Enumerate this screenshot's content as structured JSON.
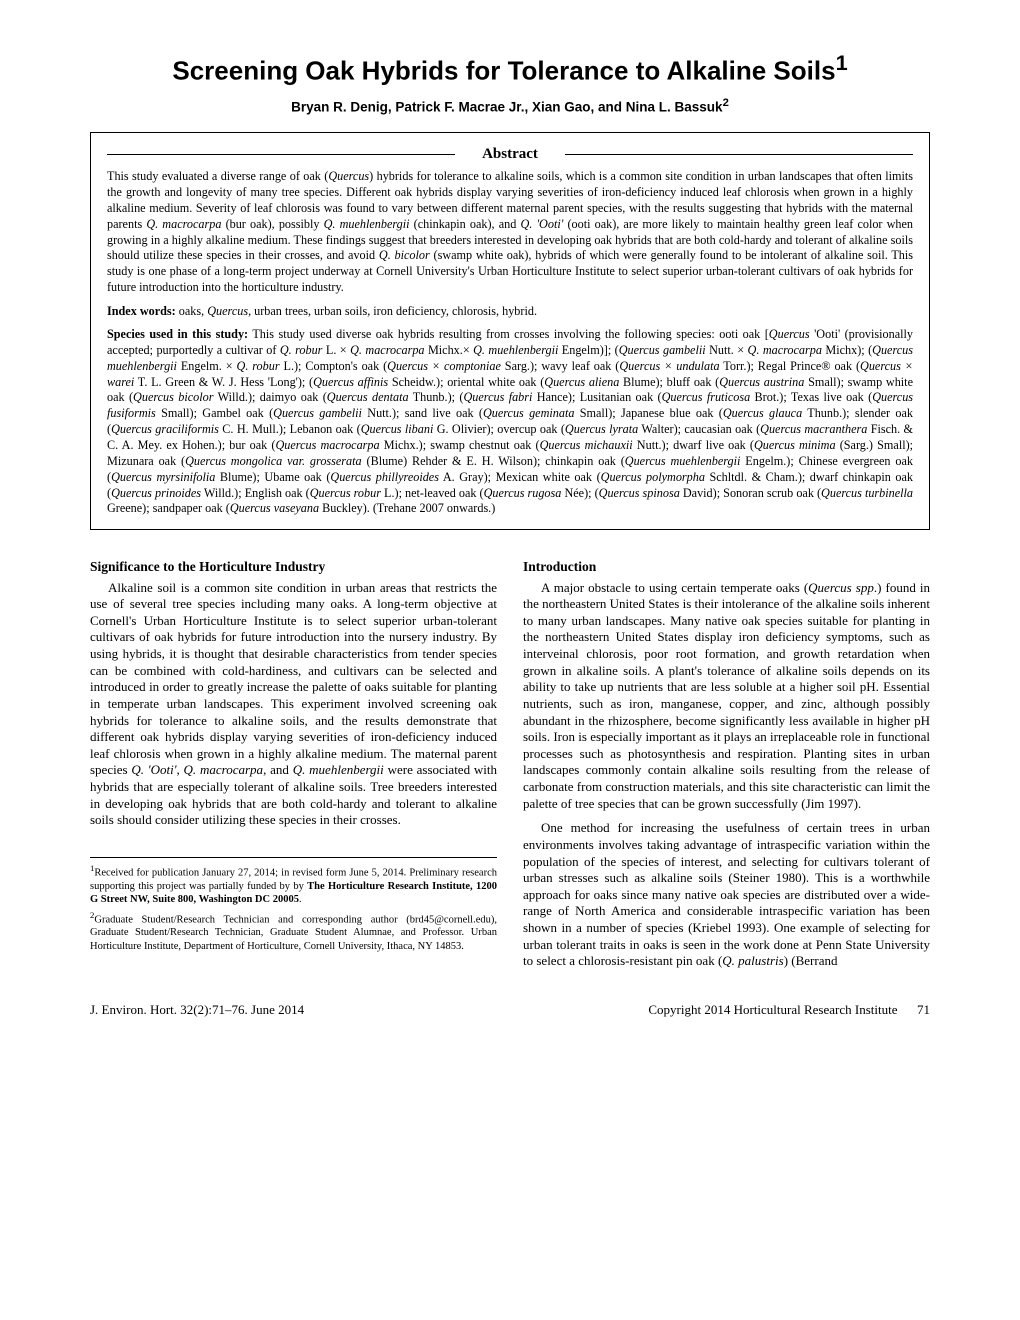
{
  "title": "Screening Oak Hybrids for Tolerance to Alkaline Soils",
  "title_sup": "1",
  "authors": "Bryan R. Denig, Patrick F. Macrae Jr., Xian Gao, and Nina L. Bassuk",
  "authors_sup": "2",
  "abstract_heading": "Abstract",
  "abstract_text": "This study evaluated a diverse range of oak (Quercus) hybrids for tolerance to alkaline soils, which is a common site condition in urban landscapes that often limits the growth and longevity of many tree species. Different oak hybrids display varying severities of iron-deficiency induced leaf chlorosis when grown in a highly alkaline medium. Severity of leaf chlorosis was found to vary between different maternal parent species, with the results suggesting that hybrids with the maternal parents Q. macrocarpa (bur oak), possibly Q. muehlenbergii (chinkapin oak), and Q. 'Ooti' (ooti oak), are more likely to maintain healthy green leaf color when growing in a highly alkaline medium. These findings suggest that breeders interested in developing oak hybrids that are both cold-hardy and tolerant of alkaline soils should utilize these species in their crosses, and avoid Q. bicolor (swamp white oak), hybrids of which were generally found to be intolerant of alkaline soil. This study is one phase of a long-term project underway at Cornell University's Urban Horticulture Institute to select superior urban-tolerant cultivars of oak hybrids for future introduction into the horticulture industry.",
  "index_words_label": "Index words:",
  "index_words_text": " oaks, Quercus, urban trees, urban soils, iron deficiency, chlorosis, hybrid.",
  "species_label": "Species used in this study:",
  "species_text": " This study used diverse oak hybrids resulting from crosses involving the following species: ooti oak [Quercus 'Ooti' (provisionally accepted; purportedly a cultivar of Q. robur L. × Q. macrocarpa Michx.× Q. muehlenbergii Engelm)]; (Quercus gambelii Nutt. × Q. macrocarpa Michx); (Quercus muehlenbergii Engelm. × Q. robur L.); Compton's oak (Quercus × comptoniae Sarg.); wavy leaf oak (Quercus × undulata Torr.); Regal Prince® oak (Quercus × warei T. L. Green & W. J. Hess 'Long'); (Quercus affinis Scheidw.); oriental white oak (Quercus aliena Blume); bluff oak (Quercus austrina Small); swamp white oak (Quercus bicolor Willd.); daimyo oak (Quercus dentata Thunb.); (Quercus fabri Hance); Lusitanian oak (Quercus fruticosa Brot.); Texas live oak (Quercus fusiformis Small); Gambel oak (Quercus gambelii Nutt.); sand live oak (Quercus geminata Small); Japanese blue oak (Quercus glauca Thunb.); slender oak (Quercus graciliformis C. H. Mull.); Lebanon oak (Quercus libani G. Olivier); overcup oak (Quercus lyrata Walter); caucasian oak (Quercus macranthera Fisch. & C. A. Mey. ex Hohen.); bur oak (Quercus macrocarpa Michx.); swamp chestnut oak (Quercus michauxii Nutt.); dwarf live oak (Quercus minima (Sarg.) Small); Mizunara oak (Quercus mongolica var. grosserata (Blume) Rehder & E. H. Wilson); chinkapin oak (Quercus muehlenbergii Engelm.); Chinese evergreen oak (Quercus myrsinifolia Blume); Ubame oak (Quercus phillyreoides A. Gray); Mexican white oak (Quercus polymorpha Schltdl. & Cham.); dwarf chinkapin oak (Quercus prinoides Willd.); English oak (Quercus robur L.); net-leaved oak (Quercus rugosa Née); (Quercus spinosa David); Sonoran scrub oak (Quercus turbinella Greene); sandpaper oak (Quercus vaseyana Buckley). (Trehane 2007 onwards.)",
  "left": {
    "heading": "Significance to the Horticulture Industry",
    "p1": "Alkaline soil is a common site condition in urban areas that restricts the use of several tree species including many oaks. A long-term objective at Cornell's Urban Horticulture Institute is to select superior urban-tolerant cultivars of oak hybrids for future introduction into the nursery industry. By using hybrids, it is thought that desirable characteristics from tender species can be combined with cold-hardiness, and cultivars can be selected and introduced in order to greatly increase the palette of oaks suitable for planting in temperate urban landscapes. This experiment involved screening oak hybrids for tolerance to alkaline soils, and the results demonstrate that different oak hybrids display varying severities of iron-deficiency induced leaf chlorosis when grown in a highly alkaline medium. The maternal parent species Q. 'Ooti', Q. macrocarpa, and Q. muehlenbergii were associated with hybrids that are especially tolerant of alkaline soils. Tree breeders interested in developing oak hybrids that are both cold-hardy and tolerant to alkaline soils should consider utilizing these species in their crosses.",
    "fn1": "Received for publication January 27, 2014; in revised form June 5, 2014. Preliminary research supporting this project was partially funded by by The Horticulture Research Institute, 1200 G Street NW, Suite 800, Washington DC 20005.",
    "fn2": "Graduate Student/Research Technician and corresponding author (brd45@cornell.edu), Graduate Student/Research Technician, Graduate Student Alumnae, and Professor. Urban Horticulture Institute, Department of Horticulture, Cornell University, Ithaca, NY 14853."
  },
  "right": {
    "heading": "Introduction",
    "p1": "A major obstacle to using certain temperate oaks (Quercus spp.) found in the northeastern United States is their intolerance of the alkaline soils inherent to many urban landscapes. Many native oak species suitable for planting in the northeastern United States display iron deficiency symptoms, such as interveinal chlorosis, poor root formation, and growth retardation when grown in alkaline soils. A plant's tolerance of alkaline soils depends on its ability to take up nutrients that are less soluble at a higher soil pH. Essential nutrients, such as iron, manganese, copper, and zinc, although possibly abundant in the rhizosphere, become significantly less available in higher pH soils. Iron is especially important as it plays an irreplaceable role in functional processes such as photosynthesis and respiration. Planting sites in urban landscapes commonly contain alkaline soils resulting from the release of carbonate from construction materials, and this site characteristic can limit the palette of tree species that can be grown successfully (Jim 1997).",
    "p2": "One method for increasing the usefulness of certain trees in urban environments involves taking advantage of intraspecific variation within the population of the species of interest, and selecting for cultivars tolerant of urban stresses such as alkaline soils (Steiner 1980). This is a worthwhile approach for oaks since many native oak species are distributed over a wide-range of North America and considerable intraspecific variation has been shown in a number of species (Kriebel 1993). One example of selecting for urban tolerant traits in oaks is seen in the work done at Penn State University to select a chlorosis-resistant pin oak (Q. palustris) (Berrand"
  },
  "footer": {
    "left": "J. Environ. Hort. 32(2):71–76. June 2014",
    "right": "Copyright 2014 Horticultural Research Institute",
    "page": "71"
  },
  "style": {
    "page_bg": "#ffffff",
    "text_color": "#000000",
    "title_fontsize": 26,
    "body_fontsize": 13,
    "abstract_fontsize": 12.2,
    "footnote_fontsize": 10.5
  }
}
